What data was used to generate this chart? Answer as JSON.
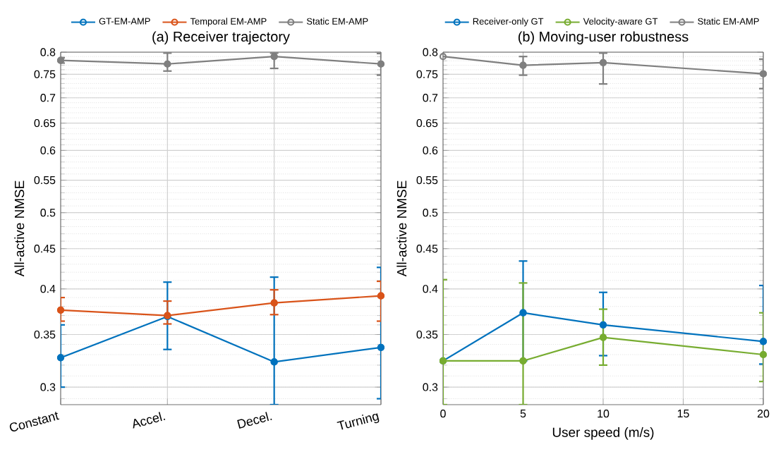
{
  "chart_data": [
    {
      "type": "line",
      "title": "(a) Receiver trajectory",
      "ylabel": "All-active NMSE",
      "categories": [
        "Constant",
        "Accel.",
        "Decel.",
        "Turning"
      ],
      "log": "y",
      "ylim": [
        0.285,
        0.8
      ],
      "yticks": [
        0.3,
        0.35,
        0.4,
        0.45,
        0.5,
        0.55,
        0.6,
        0.65,
        0.7,
        0.75,
        0.8
      ],
      "grid": true,
      "legend": "top",
      "marker": "circle",
      "line_style": "solid",
      "series": [
        {
          "name": "GT-EM-AMP",
          "color": "#0072bd",
          "values": [
            0.327,
            0.369,
            0.323,
            0.337
          ],
          "errors": [
            [
              0.3,
              0.36
            ],
            [
              0.335,
              0.408
            ],
            [
              0.285,
              0.414
            ],
            [
              0.29,
              0.426
            ]
          ]
        },
        {
          "name": "Temporal EM-AMP",
          "color": "#d95319",
          "values": [
            0.376,
            0.37,
            0.384,
            0.392
          ],
          "errors": [
            [
              0.364,
              0.39
            ],
            [
              0.361,
              0.386
            ],
            [
              0.371,
              0.399
            ],
            [
              0.364,
              0.409
            ]
          ]
        },
        {
          "name": "Static EM-AMP",
          "color": "#7f7f7f",
          "values": [
            0.781,
            0.773,
            0.79,
            0.773
          ],
          "errors": [
            [
              0.775,
              0.787
            ],
            [
              0.757,
              0.798
            ],
            [
              0.763,
              0.798
            ],
            [
              0.748,
              0.797
            ]
          ]
        }
      ]
    },
    {
      "type": "line",
      "title": "(b) Moving-user robustness",
      "xlabel": "User speed (m/s)",
      "ylabel": "All-active NMSE",
      "xlim": [
        0,
        20
      ],
      "xticks": [
        0,
        5,
        10,
        15,
        20
      ],
      "log": "y",
      "ylim": [
        0.285,
        0.8
      ],
      "yticks": [
        0.3,
        0.35,
        0.4,
        0.45,
        0.5,
        0.55,
        0.6,
        0.65,
        0.7,
        0.75,
        0.8
      ],
      "grid": true,
      "legend": "top",
      "marker": "circle",
      "line_style": "solid",
      "series": [
        {
          "name": "Receiver-only GT",
          "color": "#0072bd",
          "x": [
            0,
            5,
            10,
            20
          ],
          "values": [
            0.324,
            0.373,
            0.36,
            0.343
          ],
          "errors": [
            null,
            [
              0.324,
              0.434
            ],
            [
              0.329,
              0.396
            ],
            [
              0.321,
              0.404
            ]
          ]
        },
        {
          "name": "Velocity-aware GT",
          "color": "#77ac30",
          "x": [
            0,
            5,
            10,
            20
          ],
          "values": [
            0.324,
            0.324,
            0.347,
            0.33
          ],
          "errors": [
            [
              0.285,
              0.411
            ],
            [
              0.285,
              0.407
            ],
            [
              0.32,
              0.377
            ],
            [
              0.305,
              0.373
            ]
          ]
        },
        {
          "name": "Static EM-AMP",
          "color": "#7f7f7f",
          "x": [
            0,
            5,
            10,
            20
          ],
          "values": [
            0.79,
            0.77,
            0.776,
            0.751
          ],
          "errors": [
            null,
            [
              0.748,
              0.79
            ],
            [
              0.729,
              0.798
            ],
            [
              0.719,
              0.784
            ]
          ]
        }
      ]
    }
  ]
}
